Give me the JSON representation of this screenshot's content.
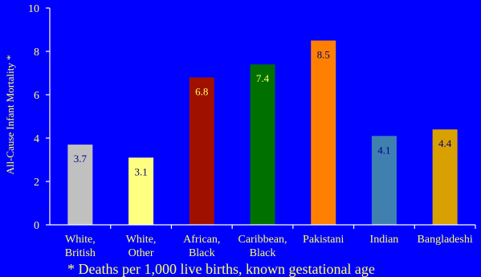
{
  "chart_data": {
    "type": "bar",
    "ylabel": "All-Cause Infant Mortality *",
    "ylim": [
      0,
      10
    ],
    "yticks": [
      0,
      2,
      4,
      6,
      8,
      10
    ],
    "grid": false,
    "categories": [
      [
        "White,",
        "British"
      ],
      [
        "White,",
        "Other"
      ],
      [
        "African,",
        "Black"
      ],
      [
        "Caribbean,",
        "Black"
      ],
      [
        "Pakistani"
      ],
      [
        "Indian"
      ],
      [
        "Bangladeshi"
      ]
    ],
    "values": [
      3.7,
      3.1,
      6.8,
      7.4,
      8.5,
      4.1,
      4.4
    ],
    "data_labels": [
      "3.7",
      "3.1",
      "6.8",
      "7.4",
      "8.5",
      "4.1",
      "4.4"
    ],
    "bar_colors": [
      "#C0C0C0",
      "#FFFF80",
      "#A01000",
      "#007000",
      "#FF8000",
      "#4080B0",
      "#D8A000"
    ],
    "label_colors": [
      "#000080",
      "#000080",
      "#FFFF66",
      "#FFFF66",
      "#000080",
      "#000080",
      "#000080"
    ],
    "footnote": "* Deaths per 1,000 live births, known gestational age"
  },
  "colors": {
    "background": "#0000FF",
    "text": "#FFFF66",
    "axis": "#FFFFFF"
  }
}
